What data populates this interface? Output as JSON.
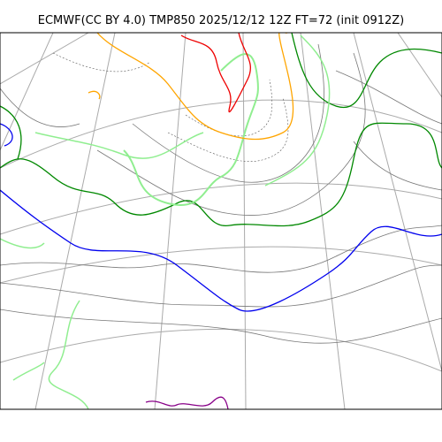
{
  "header": {
    "title": "ECMWF(CC BY 4.0) TMP850 2025/12/12 12Z FT=72 (init 0912Z)"
  }
}
